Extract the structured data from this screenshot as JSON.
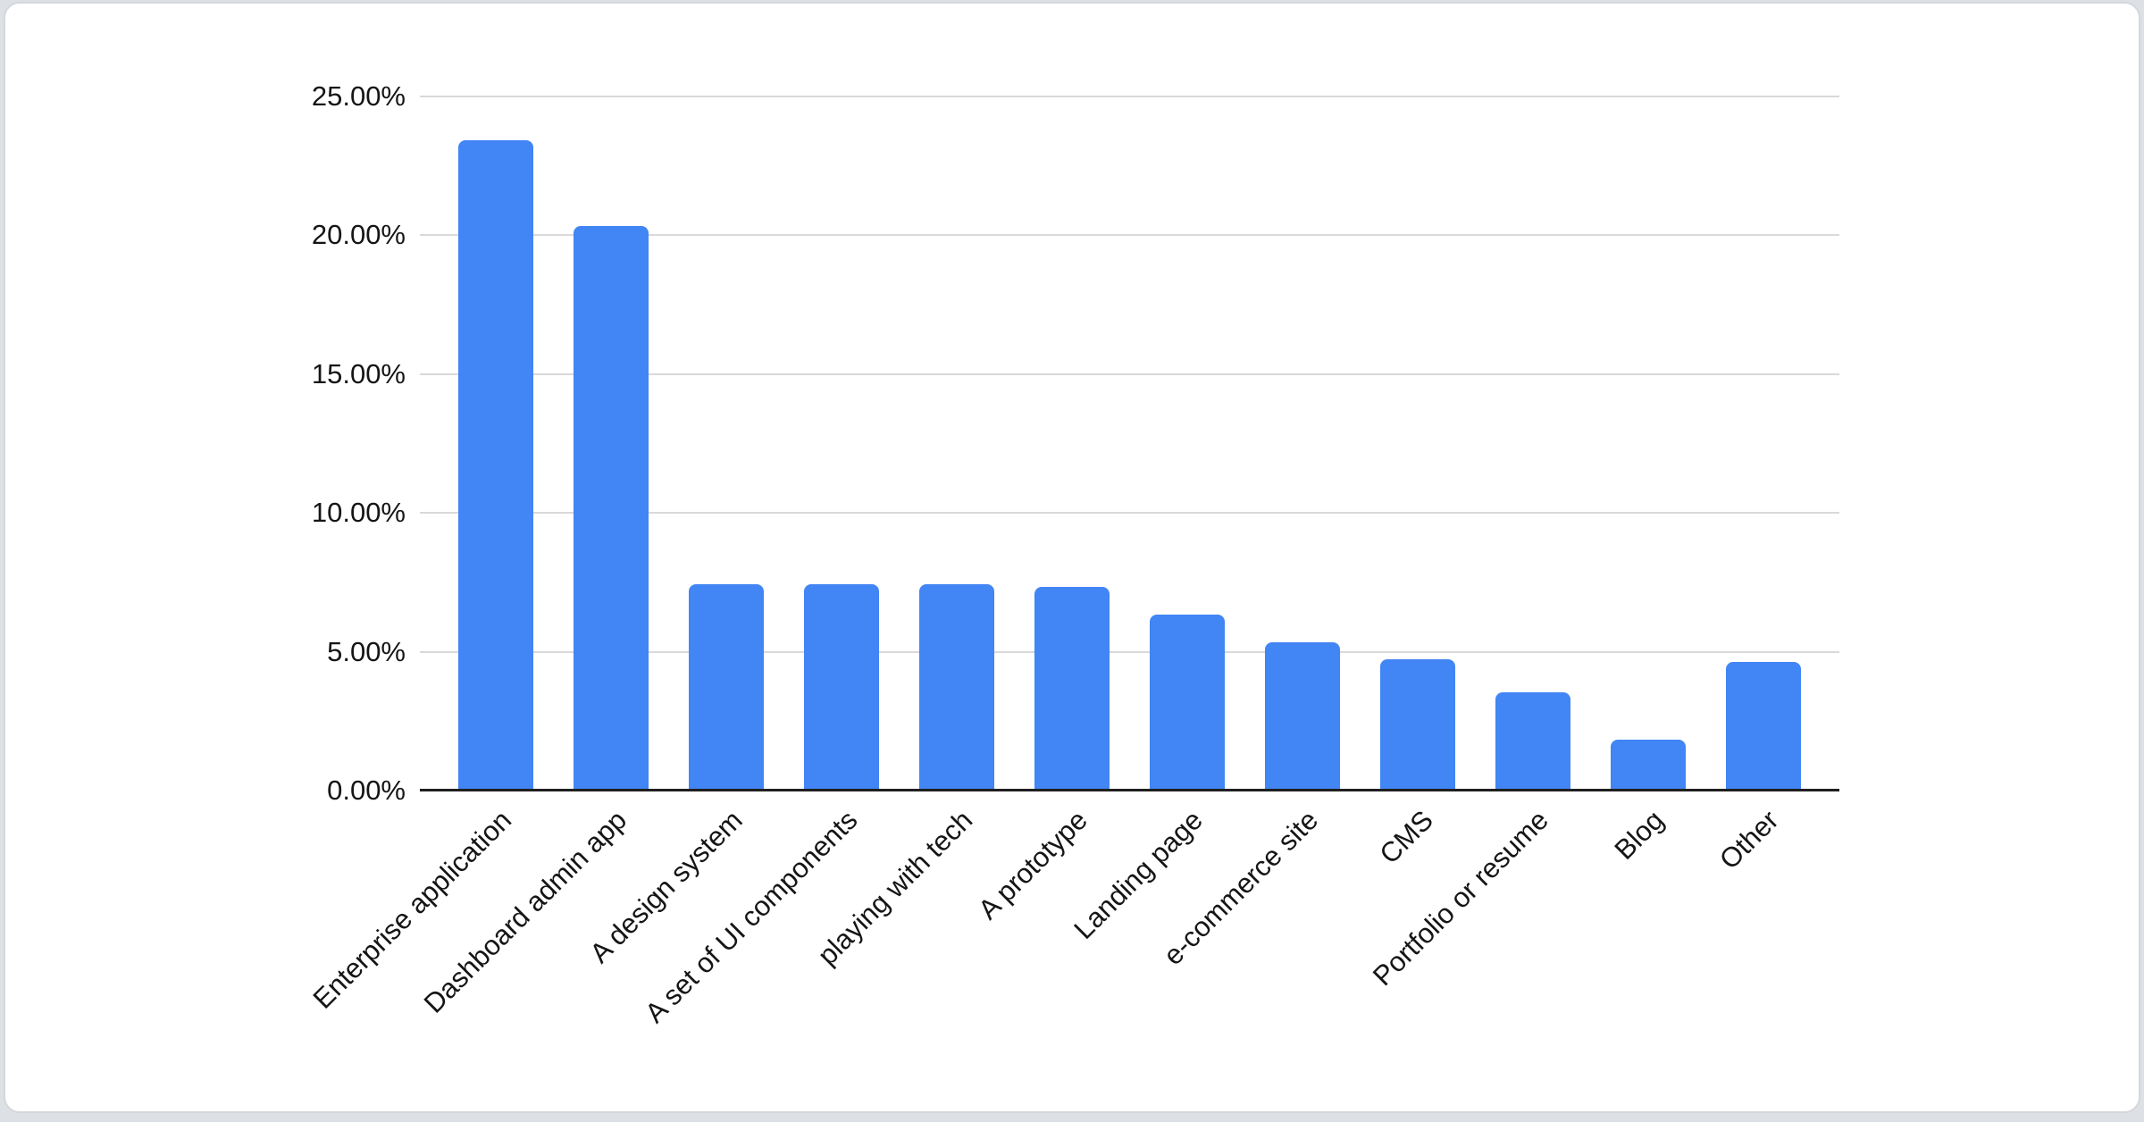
{
  "chart_data": {
    "type": "bar",
    "categories": [
      "Enterprise application",
      "Dashboard admin app",
      "A design system",
      "A set of UI components",
      "playing with tech",
      "A prototype",
      "Landing page",
      "e-commerce site",
      "CMS",
      "Portfolio or resume",
      "Blog",
      "Other"
    ],
    "values": [
      23.4,
      20.3,
      7.4,
      7.4,
      7.4,
      7.3,
      6.3,
      5.3,
      4.7,
      3.5,
      1.8,
      4.6
    ],
    "title": "",
    "xlabel": "",
    "ylabel": "",
    "ylim": [
      0,
      25
    ],
    "yticks": [
      0,
      5,
      10,
      15,
      20,
      25
    ],
    "ytick_labels": [
      "0.00%",
      "5.00%",
      "10.00%",
      "15.00%",
      "20.00%",
      "25.00%"
    ],
    "grid": true,
    "legend": false,
    "colors": {
      "bar": "#4285f4",
      "gridline": "#d9d9d9",
      "axis_line": "#1f1f1f",
      "label_text": "#151515",
      "card_background": "#ffffff",
      "card_border": "#d4d7dc",
      "page_background": "#dde0e4"
    }
  }
}
